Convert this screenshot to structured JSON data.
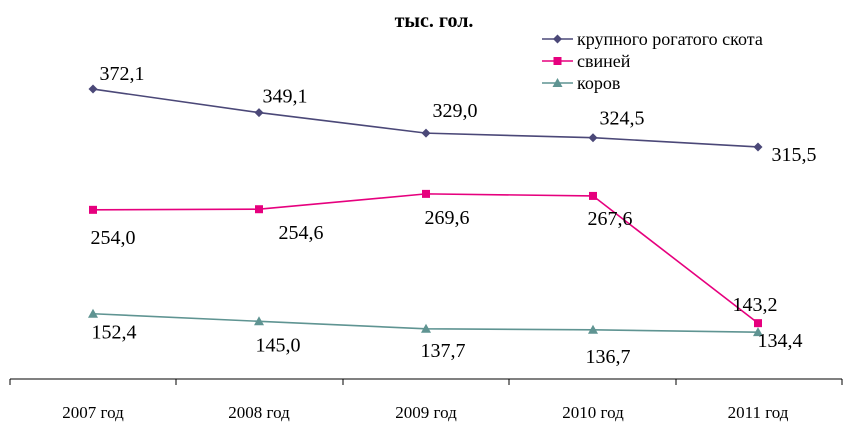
{
  "chart_data": {
    "type": "line",
    "title": "тыс. гол.",
    "categories": [
      "2007 год",
      "2008 год",
      "2009 год",
      "2010 год",
      "2011 год"
    ],
    "series": [
      {
        "name": "крупного рогатого скота",
        "values": [
          372.1,
          349.1,
          329.0,
          324.5,
          315.5
        ],
        "labels": [
          "372,1",
          "349,1",
          "329,0",
          "324,5",
          "315,5"
        ],
        "color": "#4B4878",
        "marker": "diamond"
      },
      {
        "name": "свиней",
        "values": [
          254.0,
          254.6,
          269.6,
          267.6,
          143.2
        ],
        "labels": [
          "254,0",
          "254,6",
          "269,6",
          "267,6",
          "143,2"
        ],
        "color": "#E6007E",
        "marker": "square"
      },
      {
        "name": "коров",
        "values": [
          152.4,
          145.0,
          137.7,
          136.7,
          134.4
        ],
        "labels": [
          "152,4",
          "145,0",
          "137,7",
          "136,7",
          "134,4"
        ],
        "color": "#5F9492",
        "marker": "triangle"
      }
    ],
    "legend_position": "top-right",
    "grid": false
  }
}
